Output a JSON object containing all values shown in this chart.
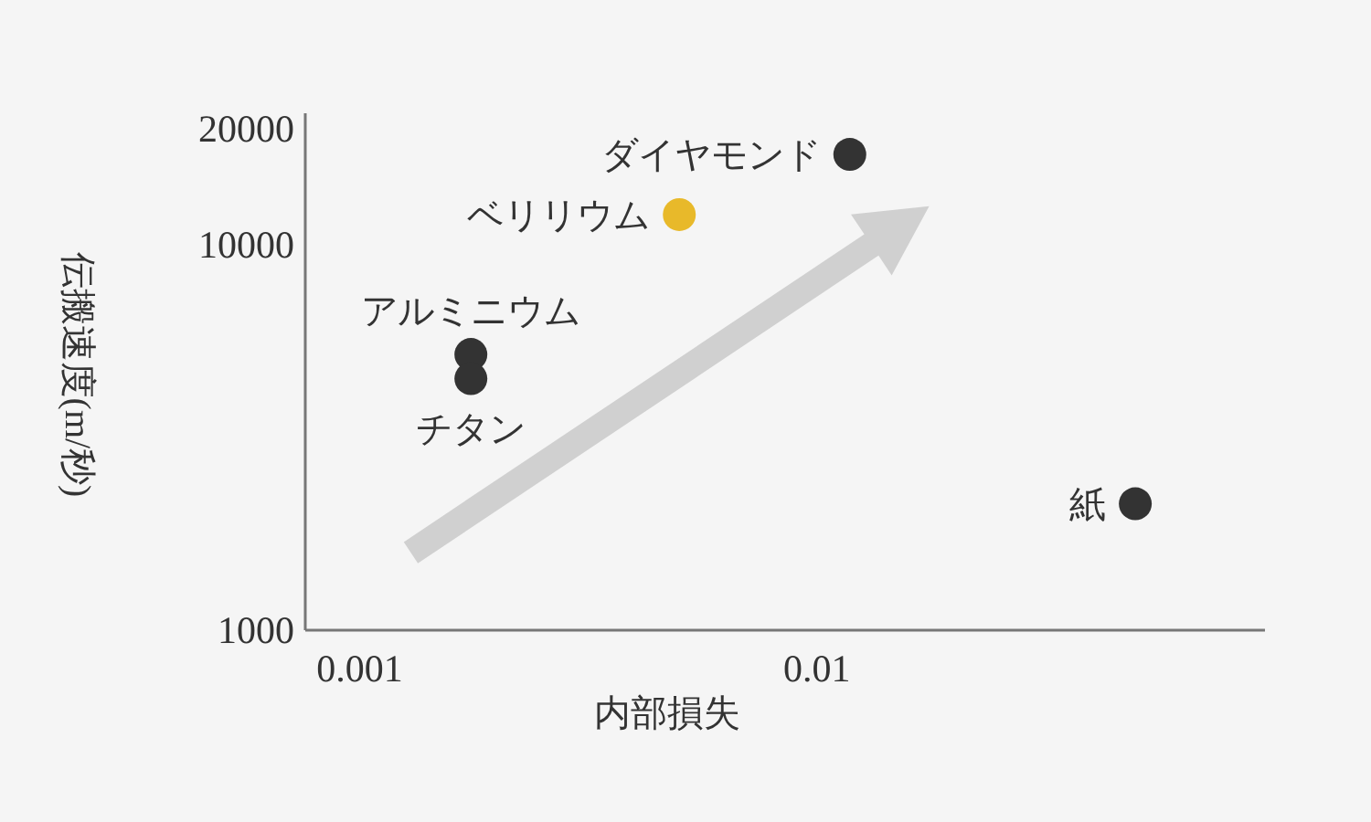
{
  "chart_data": {
    "type": "scatter",
    "xlabel": "内部損失",
    "ylabel": "伝搬速度(m/秒)",
    "log": "xy",
    "marker": "circle",
    "grid": false,
    "xlim": [
      0.00076,
      0.0955
    ],
    "ylim": [
      1000,
      22000
    ],
    "xticks": [
      0.001,
      0.01
    ],
    "yticks": [
      1000,
      10000,
      20000
    ],
    "series": [
      {
        "name": "ダイヤモンド",
        "color": "#333333",
        "x": [
          0.0118
        ],
        "values": [
          17200
        ]
      },
      {
        "name": "ベリリウム",
        "color": "#e8b92a",
        "x": [
          0.005
        ],
        "values": [
          12000
        ]
      },
      {
        "name": "アルミニウム",
        "color": "#333333",
        "x": [
          0.00175
        ],
        "values": [
          5200
        ]
      },
      {
        "name": "チタン",
        "color": "#333333",
        "x": [
          0.00175
        ],
        "values": [
          4500
        ]
      },
      {
        "name": "紙",
        "color": "#333333",
        "x": [
          0.0497
        ],
        "values": [
          2130
        ]
      }
    ]
  }
}
